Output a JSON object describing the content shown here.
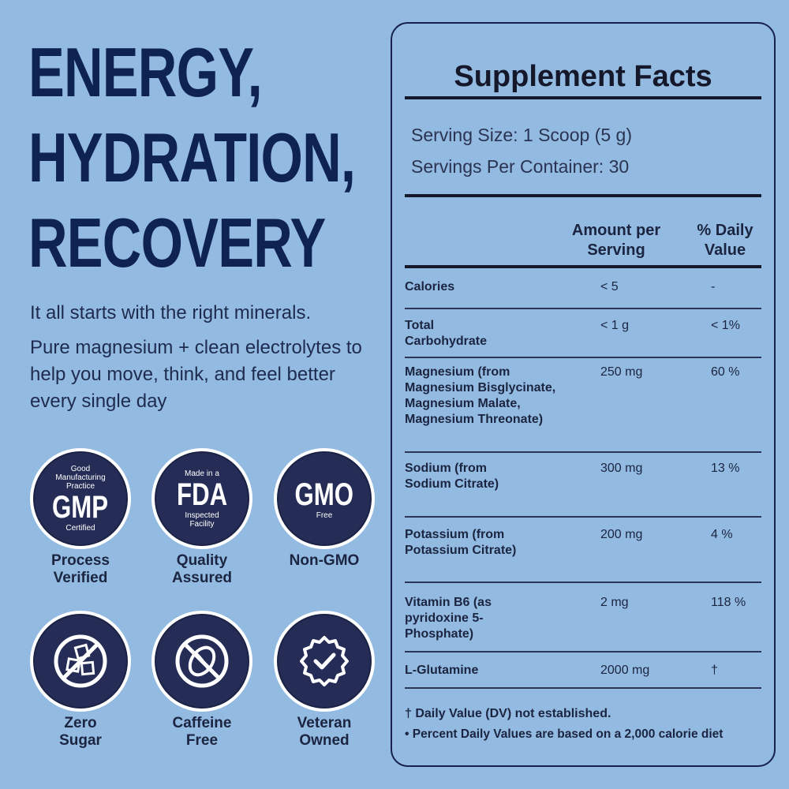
{
  "headline": [
    "ENERGY,",
    "HYDRATION,",
    "RECOVERY"
  ],
  "intro": {
    "line1": "It all starts with the right minerals.",
    "line2": "Pure magnesium + clean electrolytes to help you move, think, and feel better every single day"
  },
  "badges": {
    "gmp": {
      "top": "Good Manufacturing Practice",
      "big": "GMP",
      "bottom": "Certified",
      "caption": "Process Verified"
    },
    "fda": {
      "top": "Made in a",
      "big": "FDA",
      "bottom": "Inspected Facility",
      "caption": "Quality Assured"
    },
    "gmo": {
      "big": "GMO",
      "bottom": "Free",
      "caption": "Non-GMO"
    },
    "sugar": {
      "icon": "no-sugar-icon",
      "caption": "Zero Sugar"
    },
    "caffeine": {
      "icon": "no-caffeine-icon",
      "caption": "Caffeine Free"
    },
    "veteran": {
      "icon": "check-seal-icon",
      "caption": "Veteran Owned"
    }
  },
  "facts": {
    "title": "Supplement Facts",
    "serving_size": "Serving Size: 1 Scoop (5 g)",
    "servings_per_container": "Servings Per Container: 30",
    "col_amount": "Amount per Serving",
    "col_dv": "% Daily Value",
    "rows": [
      {
        "name": "Calories",
        "amount": "< 5",
        "dv": "-"
      },
      {
        "name": "Total Carbohydrate",
        "amount": "< 1 g",
        "dv": "< 1%"
      },
      {
        "name": "Magnesium (from Magnesium Bisglycinate, Magnesium Malate, Magnesium Threonate)",
        "amount": "250 mg",
        "dv": "60 %"
      },
      {
        "name": "Sodium (from Sodium Citrate)",
        "amount": "300 mg",
        "dv": "13 %"
      },
      {
        "name": "Potassium (from Potassium Citrate)",
        "amount": "200 mg",
        "dv": "4 %"
      },
      {
        "name": "Vitamin B6 (as pyridoxine 5-Phosphate)",
        "amount": "2 mg",
        "dv": "118 %"
      },
      {
        "name": "L-Glutamine",
        "amount": "2000 mg",
        "dv": "†"
      }
    ],
    "footnote1": "† Daily Value (DV) not established.",
    "footnote2": "• Percent Daily Values are based on a 2,000 calorie diet"
  },
  "colors": {
    "background": "#93bae0",
    "navy": "#0f2352",
    "badge": "#252d57"
  }
}
